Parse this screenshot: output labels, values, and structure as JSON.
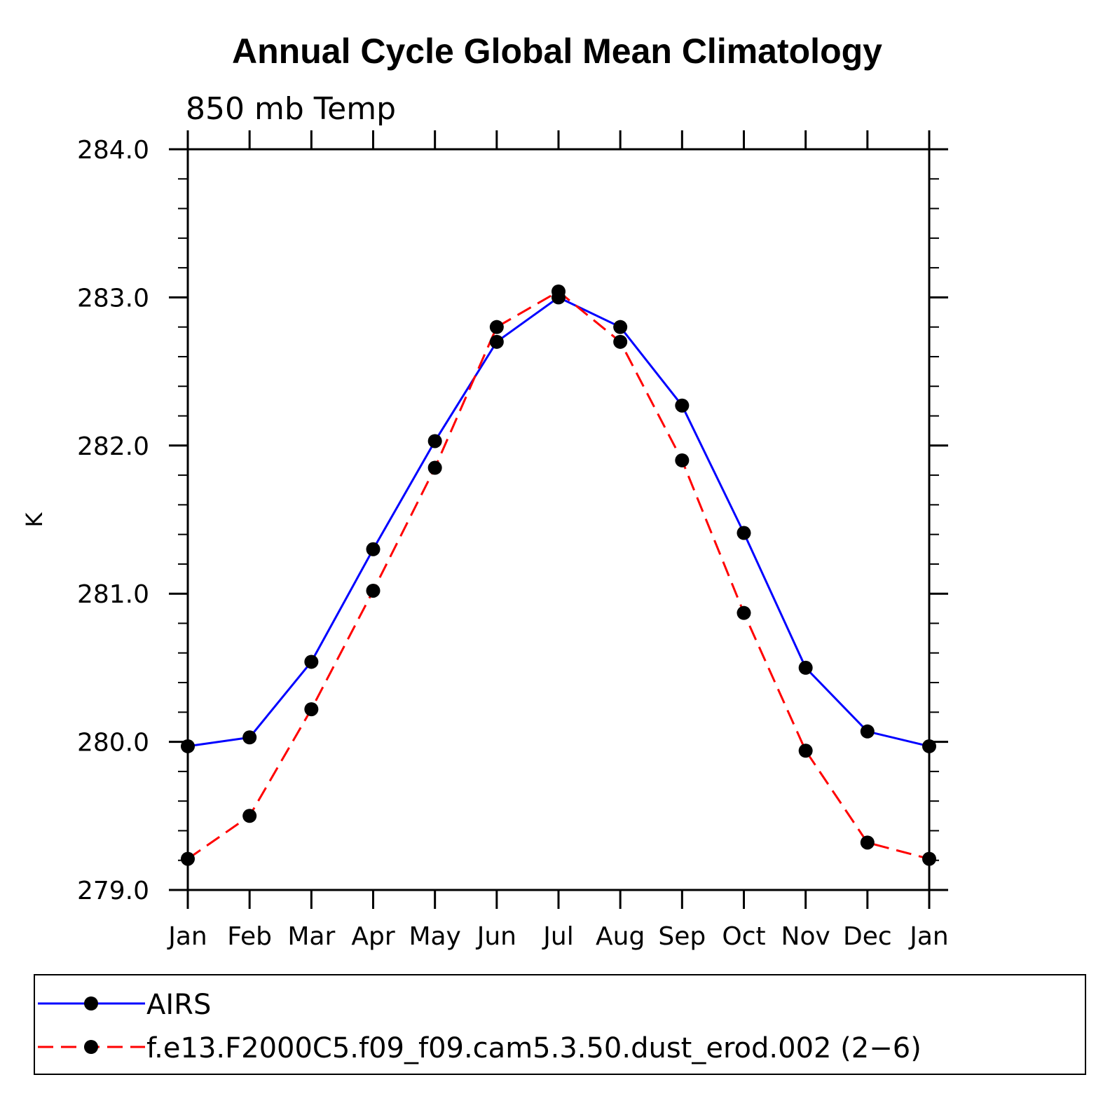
{
  "chart_data": {
    "type": "line",
    "title": "Annual Cycle Global Mean Climatology",
    "subtitle": "850 mb Temp",
    "xlabel": "",
    "ylabel": "K",
    "categories": [
      "Jan",
      "Feb",
      "Mar",
      "Apr",
      "May",
      "Jun",
      "Jul",
      "Aug",
      "Sep",
      "Oct",
      "Nov",
      "Dec",
      "Jan"
    ],
    "ylim": [
      279.0,
      284.0
    ],
    "yticks": [
      "279.0",
      "280.0",
      "281.0",
      "282.0",
      "283.0",
      "284.0"
    ],
    "grid": false,
    "legend_position": "bottom",
    "series": [
      {
        "name": "AIRS",
        "color": "#0000ff",
        "style": "solid",
        "values": [
          279.97,
          280.03,
          280.54,
          281.3,
          282.03,
          282.7,
          283.0,
          282.8,
          282.27,
          281.41,
          280.5,
          280.07,
          279.97
        ]
      },
      {
        "name": "f.e13.F2000C5.f09_f09.cam5.3.50.dust_erod.002 (2−6)",
        "color": "#ff0000",
        "style": "dashed",
        "values": [
          279.21,
          279.5,
          280.22,
          281.02,
          281.85,
          282.8,
          283.04,
          282.7,
          281.9,
          280.87,
          279.94,
          279.32,
          279.21
        ]
      }
    ]
  }
}
